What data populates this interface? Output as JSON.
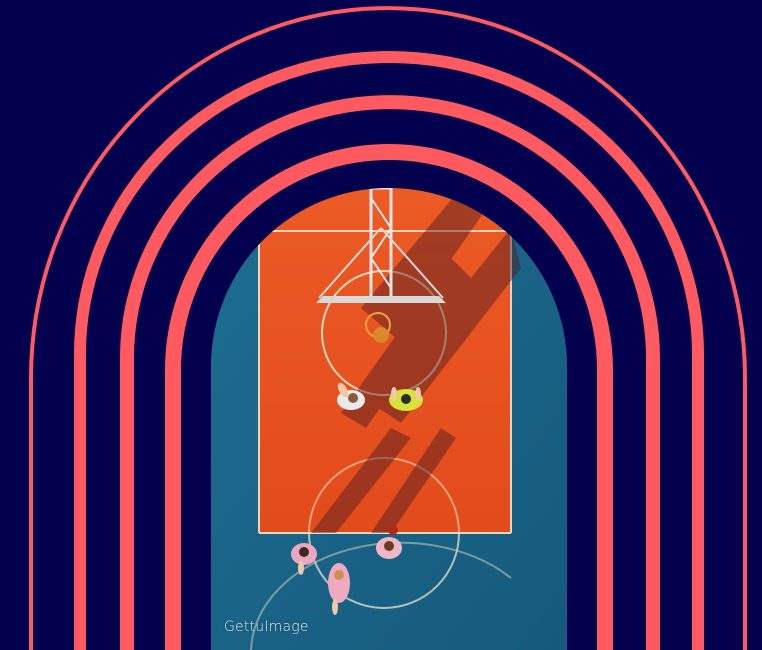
{
  "colors": {
    "background": "#03004e",
    "arch": "#ff5a5f",
    "court_orange": "#e8501f",
    "court_blue": "#1c6a8f",
    "court_lines": "#f3e7c9"
  },
  "photo": {
    "subject": "aerial-basketball-court-photo",
    "caption": "GettuImage"
  }
}
